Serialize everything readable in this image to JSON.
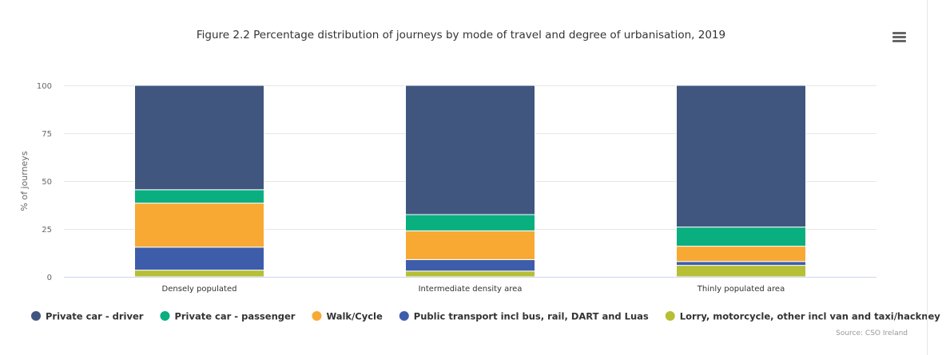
{
  "chart_data": {
    "type": "bar",
    "stacked": true,
    "title": "Figure 2.2 Percentage distribution of journeys by mode of travel and degree of urbanisation, 2019",
    "xlabel": "",
    "ylabel": "% of journeys",
    "ylim": [
      0,
      100
    ],
    "yticks": [
      "0",
      "25",
      "50",
      "75",
      "100"
    ],
    "grid": true,
    "legend_position": "bottom",
    "categories": [
      "Densely populated",
      "Intermediate density area",
      "Thinly populated area"
    ],
    "series": [
      {
        "name": "Lorry, motorcycle, other incl van and taxi/hackney",
        "color": "#b6bf35",
        "values": [
          3.5,
          3,
          6
        ]
      },
      {
        "name": "Public transport incl bus, rail, DART and Luas",
        "color": "#3d5dab",
        "values": [
          12,
          6,
          2
        ]
      },
      {
        "name": "Walk/Cycle",
        "color": "#f7a934",
        "values": [
          23,
          15,
          8
        ]
      },
      {
        "name": "Private car - passenger",
        "color": "#0aaf80",
        "values": [
          7,
          8.5,
          10
        ]
      },
      {
        "name": "Private car - driver",
        "color": "#41567f",
        "values": [
          54.5,
          67.5,
          74
        ]
      }
    ],
    "legend_order": [
      "Private car - driver",
      "Private car - passenger",
      "Walk/Cycle",
      "Public transport incl bus, rail, DART and Luas",
      "Lorry, motorcycle, other incl van and taxi/hackney"
    ],
    "credit": "Source: CSO Ireland"
  },
  "menu_icon": "hamburger-menu-icon"
}
